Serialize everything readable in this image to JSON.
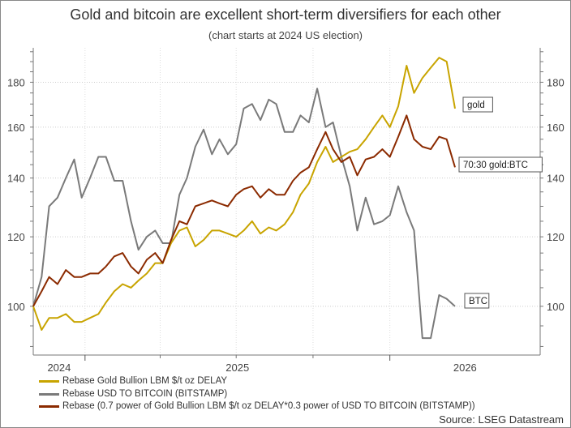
{
  "chart_data": {
    "type": "line",
    "title": "Gold and bitcoin are excellent short-term diversifiers for each other",
    "subtitle": "(chart starts at 2024 US election)",
    "y_scale": "log",
    "ylim": [
      88,
      197
    ],
    "xlim": [
      "2024-10-31",
      "2026-06-30"
    ],
    "y_ticks": [
      100,
      120,
      140,
      160,
      180
    ],
    "y_axis_sides": [
      "left",
      "right"
    ],
    "x_tick_labels": [
      "2024",
      "2025",
      "2026"
    ],
    "x_major_ticks": [
      "2025-01-01",
      "2026-01-01"
    ],
    "x_minor_ticks": [
      "2025-04-01",
      "2025-07-01",
      "2025-10-01"
    ],
    "grid": true,
    "legend_placement": "bottom-left",
    "x": [
      "2024-10-31",
      "2024-11-10",
      "2024-11-19",
      "2024-11-29",
      "2024-12-09",
      "2024-12-19",
      "2024-12-28",
      "2025-01-07",
      "2025-01-17",
      "2025-01-26",
      "2025-02-05",
      "2025-02-15",
      "2025-02-25",
      "2025-03-06",
      "2025-03-16",
      "2025-03-26",
      "2025-04-04",
      "2025-04-14",
      "2025-04-24",
      "2025-05-03",
      "2025-05-13",
      "2025-05-23",
      "2025-06-02",
      "2025-06-11",
      "2025-06-21",
      "2025-07-01",
      "2025-07-10",
      "2025-07-20",
      "2025-07-30",
      "2025-08-09",
      "2025-08-18",
      "2025-08-28",
      "2025-09-07",
      "2025-09-16",
      "2025-09-26",
      "2025-10-06",
      "2025-10-16",
      "2025-10-25",
      "2025-11-04",
      "2025-11-14",
      "2025-11-23",
      "2025-12-03",
      "2025-12-13",
      "2025-12-23",
      "2026-01-01",
      "2026-01-11",
      "2026-01-21",
      "2026-01-30",
      "2026-02-09",
      "2026-02-19",
      "2026-03-01",
      "2026-03-10",
      "2026-03-20"
    ],
    "series": [
      {
        "name": "Rebase Gold Bullion LBM $/t oz DELAY",
        "label": "gold",
        "color": "#c8a400",
        "values": [
          100,
          94,
          97,
          97,
          98,
          96,
          96,
          97,
          98,
          101,
          104,
          106,
          105,
          107,
          109,
          112,
          112,
          118,
          122,
          123,
          117,
          119,
          122,
          122,
          121,
          120,
          122,
          125,
          121,
          123,
          122,
          124,
          128,
          134,
          138,
          146,
          152,
          146,
          148,
          150,
          151,
          155,
          160,
          165,
          160,
          169,
          188,
          175,
          182,
          187,
          192,
          190,
          168
        ]
      },
      {
        "name": "Rebase USD TO BITCOIN (BITSTAMP)",
        "label": "BTC",
        "color": "#7a7a7a",
        "values": [
          100,
          108,
          130,
          133,
          140,
          147,
          133,
          140,
          148,
          148,
          139,
          139,
          125,
          116,
          120,
          122,
          118,
          118,
          134,
          140,
          152,
          159,
          149,
          155,
          149,
          153,
          168,
          170,
          163,
          172,
          170,
          158,
          158,
          165,
          162,
          177,
          160,
          162,
          148,
          137,
          122,
          133,
          124,
          125,
          127,
          137,
          128,
          122,
          92,
          92,
          103,
          102,
          100
        ]
      },
      {
        "name": "Rebase (0.7 power of Gold Bullion LBM $/t oz DELAY*0.3 power of USD TO BITCOIN (BITSTAMP))",
        "label": "70:30 gold:BTC",
        "color": "#8b2a00",
        "values": [
          100,
          104,
          108,
          106,
          110,
          108,
          108,
          109,
          109,
          111,
          114,
          115,
          111,
          109,
          113,
          115,
          112,
          119,
          125,
          124,
          130,
          131,
          132,
          131,
          130,
          134,
          136,
          137,
          133,
          136,
          134,
          134,
          139,
          142,
          144,
          151,
          158,
          151,
          146,
          148,
          141,
          147,
          148,
          151,
          148,
          156,
          165,
          155,
          152,
          151,
          156,
          155,
          144
        ]
      }
    ],
    "source": "Source: LSEG Datastream"
  }
}
